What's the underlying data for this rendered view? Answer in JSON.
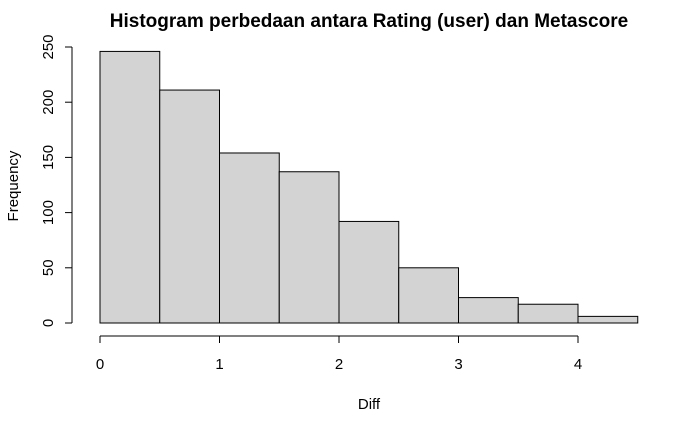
{
  "chart_data": {
    "type": "bar",
    "title": "Histogram perbedaan antara Rating (user) dan Metascore",
    "xlabel": "Diff",
    "ylabel": "Frequency",
    "bins": [
      {
        "start": 0.0,
        "end": 0.5,
        "count": 246
      },
      {
        "start": 0.5,
        "end": 1.0,
        "count": 211
      },
      {
        "start": 1.0,
        "end": 1.5,
        "count": 154
      },
      {
        "start": 1.5,
        "end": 2.0,
        "count": 137
      },
      {
        "start": 2.0,
        "end": 2.5,
        "count": 92
      },
      {
        "start": 2.5,
        "end": 3.0,
        "count": 50
      },
      {
        "start": 3.0,
        "end": 3.5,
        "count": 23
      },
      {
        "start": 3.5,
        "end": 4.0,
        "count": 17
      },
      {
        "start": 4.0,
        "end": 4.5,
        "count": 6
      }
    ],
    "xlim": [
      0,
      4.5
    ],
    "ylim": [
      0,
      250
    ],
    "x_ticks": [
      "0",
      "1",
      "2",
      "3",
      "4"
    ],
    "y_ticks": [
      "0",
      "50",
      "100",
      "150",
      "200",
      "250"
    ],
    "grid": false,
    "colors": {
      "bar_fill": "#d3d3d3",
      "bar_stroke": "#000000"
    }
  }
}
